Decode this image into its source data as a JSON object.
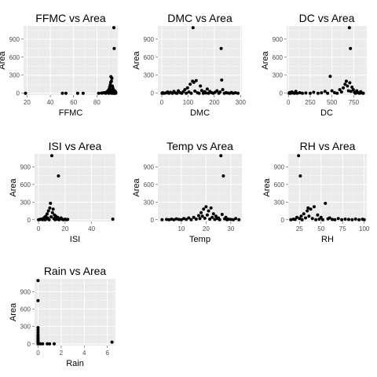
{
  "chart_data": [
    {
      "type": "scatter",
      "title": "FFMC vs Area",
      "xlabel": "FFMC",
      "ylabel": "Area",
      "xlim": [
        17,
        98
      ],
      "ylim": [
        -30,
        1120
      ],
      "xticks": [
        20,
        40,
        60,
        80
      ],
      "yticks": [
        0,
        300,
        600,
        900
      ],
      "points": [
        [
          18.7,
          0
        ],
        [
          50.4,
          0
        ],
        [
          53.4,
          0
        ],
        [
          63.5,
          0
        ],
        [
          68.2,
          0
        ],
        [
          81.5,
          0
        ],
        [
          84.0,
          2
        ],
        [
          85.0,
          5
        ],
        [
          86.2,
          10
        ],
        [
          87.6,
          0
        ],
        [
          88.0,
          15
        ],
        [
          89.0,
          20
        ],
        [
          89.3,
          35
        ],
        [
          90.0,
          50
        ],
        [
          90.2,
          0
        ],
        [
          90.6,
          70
        ],
        [
          91.0,
          100
        ],
        [
          91.2,
          25
        ],
        [
          91.5,
          140
        ],
        [
          91.7,
          5
        ],
        [
          91.9,
          180
        ],
        [
          92.0,
          40
        ],
        [
          92.1,
          275
        ],
        [
          92.3,
          10
        ],
        [
          92.5,
          200
        ],
        [
          92.7,
          60
        ],
        [
          92.9,
          250
        ],
        [
          93.0,
          0
        ],
        [
          93.3,
          120
        ],
        [
          93.5,
          30
        ],
        [
          93.7,
          90
        ],
        [
          93.9,
          15
        ],
        [
          94.1,
          60
        ],
        [
          94.3,
          0
        ],
        [
          94.5,
          25
        ],
        [
          94.8,
          8
        ],
        [
          95.0,
          45
        ],
        [
          95.2,
          0
        ],
        [
          95.5,
          12
        ],
        [
          95.7,
          30
        ],
        [
          95.9,
          0
        ],
        [
          94.6,
          1090
        ],
        [
          94.9,
          745
        ],
        [
          96.1,
          20
        ],
        [
          96.3,
          5
        ]
      ]
    },
    {
      "type": "scatter",
      "title": "DMC vs Area",
      "xlabel": "DMC",
      "ylabel": "Area",
      "xlim": [
        -15,
        305
      ],
      "ylim": [
        -30,
        1120
      ],
      "xticks": [
        0,
        100,
        200,
        300
      ],
      "yticks": [
        0,
        300,
        600,
        900
      ],
      "points": [
        [
          1,
          0
        ],
        [
          3,
          10
        ],
        [
          8,
          0
        ],
        [
          15,
          5
        ],
        [
          22,
          20
        ],
        [
          27,
          0
        ],
        [
          33,
          15
        ],
        [
          40,
          0
        ],
        [
          46,
          30
        ],
        [
          52,
          5
        ],
        [
          58,
          0
        ],
        [
          63,
          40
        ],
        [
          70,
          10
        ],
        [
          76,
          0
        ],
        [
          82,
          25
        ],
        [
          88,
          60
        ],
        [
          93,
          0
        ],
        [
          98,
          90
        ],
        [
          103,
          20
        ],
        [
          108,
          150
        ],
        [
          112,
          0
        ],
        [
          117,
          200
        ],
        [
          119,
          1090
        ],
        [
          122,
          180
        ],
        [
          126,
          35
        ],
        [
          131,
          210
        ],
        [
          136,
          8
        ],
        [
          142,
          0
        ],
        [
          147,
          120
        ],
        [
          152,
          45
        ],
        [
          158,
          0
        ],
        [
          163,
          25
        ],
        [
          168,
          5
        ],
        [
          173,
          70
        ],
        [
          178,
          0
        ],
        [
          183,
          30
        ],
        [
          190,
          10
        ],
        [
          196,
          0
        ],
        [
          203,
          15
        ],
        [
          210,
          40
        ],
        [
          217,
          0
        ],
        [
          222,
          20
        ],
        [
          226,
          745
        ],
        [
          228,
          220
        ],
        [
          232,
          60
        ],
        [
          238,
          0
        ],
        [
          244,
          10
        ],
        [
          250,
          5
        ],
        [
          258,
          0
        ],
        [
          265,
          12
        ],
        [
          272,
          0
        ],
        [
          280,
          8
        ],
        [
          290,
          0
        ]
      ]
    },
    {
      "type": "scatter",
      "title": "DC vs Area",
      "xlabel": "DC",
      "ylabel": "Area",
      "xlim": [
        -20,
        900
      ],
      "ylim": [
        -30,
        1120
      ],
      "xticks": [
        0,
        250,
        500,
        750
      ],
      "yticks": [
        0,
        300,
        600,
        900
      ],
      "points": [
        [
          8,
          0
        ],
        [
          15,
          12
        ],
        [
          25,
          0
        ],
        [
          40,
          20
        ],
        [
          55,
          5
        ],
        [
          70,
          0
        ],
        [
          85,
          30
        ],
        [
          100,
          0
        ],
        [
          130,
          10
        ],
        [
          160,
          0
        ],
        [
          200,
          5
        ],
        [
          250,
          0
        ],
        [
          290,
          15
        ],
        [
          340,
          0
        ],
        [
          380,
          8
        ],
        [
          420,
          30
        ],
        [
          450,
          0
        ],
        [
          480,
          280
        ],
        [
          500,
          40
        ],
        [
          530,
          10
        ],
        [
          560,
          0
        ],
        [
          590,
          60
        ],
        [
          610,
          20
        ],
        [
          630,
          90
        ],
        [
          650,
          150
        ],
        [
          665,
          200
        ],
        [
          678,
          120
        ],
        [
          690,
          40
        ],
        [
          700,
          1090
        ],
        [
          705,
          175
        ],
        [
          712,
          745
        ],
        [
          718,
          30
        ],
        [
          730,
          100
        ],
        [
          745,
          60
        ],
        [
          758,
          15
        ],
        [
          770,
          0
        ],
        [
          785,
          40
        ],
        [
          800,
          10
        ],
        [
          815,
          0
        ],
        [
          830,
          25
        ],
        [
          845,
          5
        ],
        [
          860,
          0
        ]
      ]
    },
    {
      "type": "scatter",
      "title": "ISI vs Area",
      "xlabel": "ISI",
      "ylabel": "Area",
      "xlim": [
        -3,
        58
      ],
      "ylim": [
        -30,
        1120
      ],
      "xticks": [
        0,
        20,
        40
      ],
      "yticks": [
        0,
        300,
        600,
        900
      ],
      "points": [
        [
          0,
          0
        ],
        [
          1,
          5
        ],
        [
          2,
          10
        ],
        [
          3,
          0
        ],
        [
          3.5,
          20
        ],
        [
          4,
          5
        ],
        [
          4.5,
          40
        ],
        [
          5,
          0
        ],
        [
          5.5,
          60
        ],
        [
          6,
          15
        ],
        [
          6.5,
          100
        ],
        [
          7,
          30
        ],
        [
          7.5,
          150
        ],
        [
          8,
          0
        ],
        [
          8.5,
          200
        ],
        [
          9,
          280
        ],
        [
          9.5,
          50
        ],
        [
          10,
          1090
        ],
        [
          10.5,
          120
        ],
        [
          11,
          180
        ],
        [
          11.5,
          20
        ],
        [
          12,
          80
        ],
        [
          12.5,
          0
        ],
        [
          13,
          60
        ],
        [
          13.5,
          25
        ],
        [
          14,
          10
        ],
        [
          14.5,
          40
        ],
        [
          15,
          745
        ],
        [
          15.5,
          0
        ],
        [
          16,
          15
        ],
        [
          17,
          30
        ],
        [
          18,
          5
        ],
        [
          19,
          0
        ],
        [
          20,
          10
        ],
        [
          21,
          0
        ],
        [
          22,
          5
        ],
        [
          56,
          10
        ]
      ]
    },
    {
      "type": "scatter",
      "title": "Temp vs Area",
      "xlabel": "Temp",
      "ylabel": "Area",
      "xlim": [
        0.5,
        34.5
      ],
      "ylim": [
        -30,
        1120
      ],
      "xticks": [
        10,
        20,
        30
      ],
      "yticks": [
        0,
        300,
        600,
        900
      ],
      "points": [
        [
          2.2,
          0
        ],
        [
          4,
          5
        ],
        [
          5,
          0
        ],
        [
          6,
          10
        ],
        [
          7,
          0
        ],
        [
          8,
          15
        ],
        [
          9,
          5
        ],
        [
          10,
          0
        ],
        [
          11,
          20
        ],
        [
          12,
          5
        ],
        [
          13,
          30
        ],
        [
          14,
          0
        ],
        [
          15,
          40
        ],
        [
          16,
          10
        ],
        [
          17,
          70
        ],
        [
          17.5,
          20
        ],
        [
          18,
          120
        ],
        [
          18.5,
          60
        ],
        [
          19,
          180
        ],
        [
          19.5,
          25
        ],
        [
          20,
          220
        ],
        [
          20.5,
          80
        ],
        [
          21,
          150
        ],
        [
          21.5,
          10
        ],
        [
          22,
          200
        ],
        [
          22.5,
          40
        ],
        [
          23,
          100
        ],
        [
          23.5,
          5
        ],
        [
          24,
          60
        ],
        [
          24.5,
          20
        ],
        [
          25,
          30
        ],
        [
          25.5,
          0
        ],
        [
          26,
          1090
        ],
        [
          26.5,
          90
        ],
        [
          27,
          745
        ],
        [
          27.5,
          15
        ],
        [
          28,
          40
        ],
        [
          28.5,
          0
        ],
        [
          29,
          10
        ],
        [
          30,
          5
        ],
        [
          31,
          0
        ],
        [
          32,
          20
        ],
        [
          33.3,
          0
        ]
      ]
    },
    {
      "type": "scatter",
      "title": "RH vs Area",
      "xlabel": "RH",
      "ylabel": "Area",
      "xlim": [
        12,
        103
      ],
      "ylim": [
        -30,
        1120
      ],
      "xticks": [
        25,
        50,
        75,
        100
      ],
      "yticks": [
        0,
        300,
        600,
        900
      ],
      "points": [
        [
          15,
          0
        ],
        [
          18,
          10
        ],
        [
          20,
          5
        ],
        [
          22,
          40
        ],
        [
          24,
          1090
        ],
        [
          25,
          20
        ],
        [
          26,
          745
        ],
        [
          27,
          60
        ],
        [
          28,
          0
        ],
        [
          30,
          100
        ],
        [
          32,
          30
        ],
        [
          34,
          150
        ],
        [
          35,
          200
        ],
        [
          36,
          60
        ],
        [
          38,
          180
        ],
        [
          40,
          20
        ],
        [
          42,
          220
        ],
        [
          44,
          0
        ],
        [
          46,
          80
        ],
        [
          48,
          10
        ],
        [
          50,
          40
        ],
        [
          52,
          0
        ],
        [
          55,
          280
        ],
        [
          58,
          15
        ],
        [
          60,
          30
        ],
        [
          63,
          5
        ],
        [
          66,
          0
        ],
        [
          70,
          20
        ],
        [
          74,
          0
        ],
        [
          78,
          10
        ],
        [
          82,
          5
        ],
        [
          86,
          0
        ],
        [
          90,
          12
        ],
        [
          94,
          0
        ],
        [
          98,
          8
        ],
        [
          100,
          0
        ]
      ]
    },
    {
      "type": "scatter",
      "title": "Rain vs Area",
      "xlabel": "Rain",
      "ylabel": "Area",
      "xlim": [
        -0.3,
        6.7
      ],
      "ylim": [
        -30,
        1120
      ],
      "xticks": [
        0,
        2,
        4,
        6
      ],
      "yticks": [
        0,
        300,
        600,
        900
      ],
      "points": [
        [
          0,
          0
        ],
        [
          0,
          10
        ],
        [
          0,
          25
        ],
        [
          0,
          40
        ],
        [
          0,
          60
        ],
        [
          0,
          80
        ],
        [
          0,
          100
        ],
        [
          0,
          130
        ],
        [
          0,
          160
        ],
        [
          0,
          200
        ],
        [
          0,
          240
        ],
        [
          0,
          280
        ],
        [
          0,
          745
        ],
        [
          0,
          1090
        ],
        [
          0.2,
          0
        ],
        [
          0.4,
          0
        ],
        [
          0.8,
          0
        ],
        [
          1.0,
          0
        ],
        [
          1.4,
          0
        ],
        [
          6.4,
          30
        ]
      ]
    }
  ]
}
